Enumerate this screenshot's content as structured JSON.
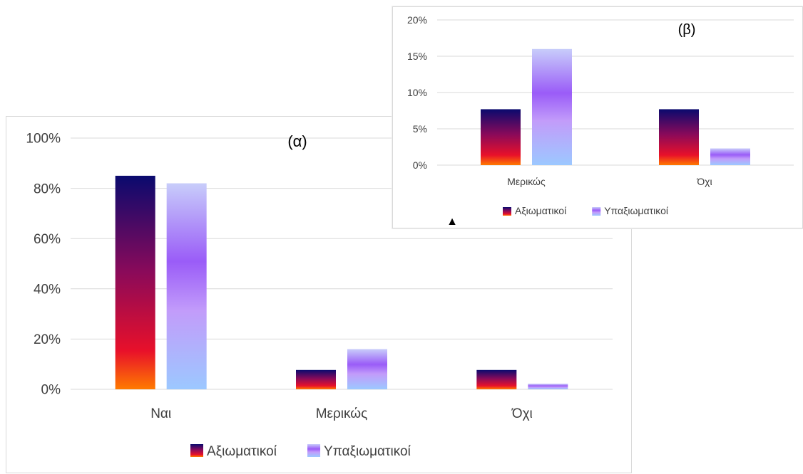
{
  "chart_data": [
    {
      "type": "bar",
      "title": "(α)",
      "categories": [
        "Ναι",
        "Μερικώς",
        "Όχι"
      ],
      "series": [
        {
          "name": "Αξιωματικοί",
          "values": [
            0.85,
            0.077,
            0.077
          ]
        },
        {
          "name": "Υπαξιωματικοί",
          "values": [
            0.82,
            0.16,
            0.022
          ]
        }
      ],
      "ylim": [
        0,
        1
      ],
      "yticks": [
        "0%",
        "20%",
        "40%",
        "60%",
        "80%",
        "100%"
      ],
      "legend": "bottom",
      "grid": true
    },
    {
      "type": "bar",
      "title": "(β)",
      "categories": [
        "Μερικώς",
        "Όχι"
      ],
      "series": [
        {
          "name": "Αξιωματικοί",
          "values": [
            0.077,
            0.077
          ]
        },
        {
          "name": "Υπαξιωματικοί",
          "values": [
            0.16,
            0.023
          ]
        }
      ],
      "ylim": [
        0,
        0.2
      ],
      "yticks": [
        "0%",
        "5%",
        "10%",
        "15%",
        "20%"
      ],
      "legend": "bottom",
      "grid": true,
      "marker": "▲"
    }
  ],
  "colors": {
    "series1_gradient": [
      "#0a0a6e",
      "#8a0a5a",
      "#e8102a",
      "#ff7a00"
    ],
    "series2_gradient": [
      "#c8cdfa",
      "#9a5cf8",
      "#c29cfa",
      "#9cc8ff"
    ]
  }
}
